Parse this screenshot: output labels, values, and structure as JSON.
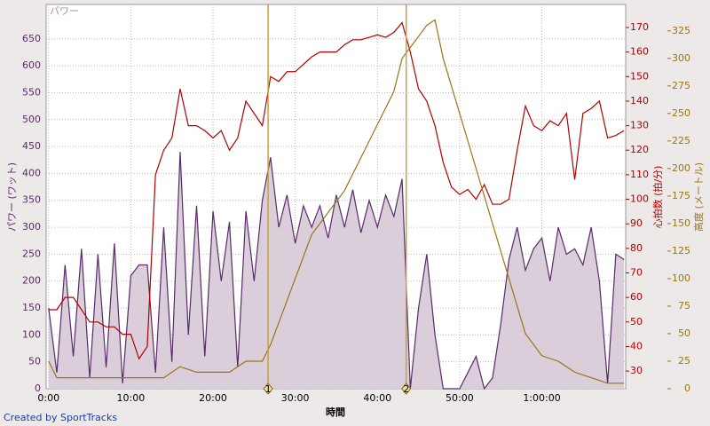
{
  "chart_data": {
    "type": "multi-axis-line",
    "panel_label": "パワー",
    "x_label": "時間",
    "y_label": "パワー (ワット)",
    "y2_label": "心拍数 (拍/分)",
    "y3_label": "高度 (メートル)",
    "footer": "Created by SportTracks",
    "grid": true,
    "xlim": [
      -0.3,
      70.2
    ],
    "xticks": [
      {
        "value": 0,
        "label": "0:00"
      },
      {
        "value": 10,
        "label": "10:00"
      },
      {
        "value": 20,
        "label": "20:00"
      },
      {
        "value": 30,
        "label": "30:00"
      },
      {
        "value": 40,
        "label": "40:00"
      },
      {
        "value": 50,
        "label": "50:00"
      },
      {
        "value": 60,
        "label": "1:00:00"
      }
    ],
    "ylim": [
      0,
      714
    ],
    "yticks": [
      0,
      50,
      100,
      150,
      200,
      250,
      300,
      350,
      400,
      450,
      500,
      550,
      600,
      650
    ],
    "y2lim": [
      22.8,
      179.4
    ],
    "y2ticks": [
      30,
      40,
      50,
      60,
      70,
      80,
      90,
      100,
      110,
      120,
      130,
      140,
      150,
      160,
      170
    ],
    "y3lim": [
      0,
      349
    ],
    "y3ticks": [
      0,
      25,
      50,
      75,
      100,
      125,
      150,
      175,
      200,
      225,
      250,
      275,
      300,
      325
    ],
    "markers": [
      {
        "x": 26.7,
        "label": "1"
      },
      {
        "x": 43.5,
        "label": "2"
      }
    ],
    "series": [
      {
        "name": "パワー",
        "axis": "y",
        "color": "#5a2a6a",
        "fill": "#d9ced9",
        "x": [
          0,
          1,
          2,
          3,
          4,
          5,
          6,
          7,
          8,
          9,
          10,
          11,
          12,
          13,
          14,
          15,
          16,
          17,
          18,
          19,
          20,
          21,
          22,
          23,
          24,
          25,
          26,
          27,
          28,
          29,
          30,
          31,
          32,
          33,
          34,
          35,
          36,
          37,
          38,
          39,
          40,
          41,
          42,
          43,
          44,
          45,
          46,
          47,
          48,
          49,
          50,
          51,
          52,
          53,
          54,
          55,
          56,
          57,
          58,
          59,
          60,
          61,
          62,
          63,
          64,
          65,
          66,
          67,
          68,
          69,
          70
        ],
        "values": [
          150,
          30,
          230,
          60,
          260,
          20,
          250,
          40,
          270,
          10,
          210,
          230,
          230,
          30,
          300,
          50,
          440,
          100,
          340,
          60,
          330,
          200,
          310,
          40,
          330,
          200,
          350,
          430,
          300,
          360,
          270,
          340,
          300,
          340,
          280,
          360,
          300,
          370,
          290,
          350,
          300,
          360,
          320,
          390,
          0,
          150,
          250,
          100,
          0,
          0,
          0,
          30,
          60,
          0,
          20,
          120,
          240,
          300,
          220,
          260,
          280,
          200,
          300,
          250,
          260,
          230,
          300,
          200,
          10,
          250,
          240
        ]
      },
      {
        "name": "心拍数",
        "axis": "y2",
        "color": "#b00000",
        "x": [
          0,
          1,
          2,
          3,
          4,
          5,
          6,
          7,
          8,
          9,
          10,
          11,
          12,
          13,
          14,
          15,
          16,
          17,
          18,
          19,
          20,
          21,
          22,
          23,
          24,
          25,
          26,
          27,
          28,
          29,
          30,
          31,
          32,
          33,
          34,
          35,
          36,
          37,
          38,
          39,
          40,
          41,
          42,
          43,
          44,
          45,
          46,
          47,
          48,
          49,
          50,
          51,
          52,
          53,
          54,
          55,
          56,
          57,
          58,
          59,
          60,
          61,
          62,
          63,
          64,
          65,
          66,
          67,
          68,
          69,
          70
        ],
        "values": [
          55,
          55,
          60,
          60,
          55,
          50,
          50,
          48,
          48,
          45,
          45,
          35,
          40,
          110,
          120,
          125,
          145,
          130,
          130,
          128,
          125,
          128,
          120,
          125,
          140,
          135,
          130,
          150,
          148,
          152,
          152,
          155,
          158,
          160,
          160,
          160,
          163,
          165,
          165,
          166,
          167,
          166,
          168,
          172,
          160,
          145,
          140,
          130,
          115,
          105,
          102,
          104,
          100,
          106,
          98,
          98,
          100,
          120,
          138,
          130,
          128,
          132,
          130,
          135,
          108,
          135,
          137,
          140,
          125,
          126,
          128
        ]
      },
      {
        "name": "高度",
        "axis": "y3",
        "color": "#9a7418",
        "x": [
          0,
          1,
          4,
          8,
          12,
          14,
          16,
          18,
          22,
          24,
          26,
          27,
          28,
          30,
          32,
          34,
          36,
          38,
          40,
          42,
          43,
          44,
          46,
          47,
          48,
          50,
          52,
          54,
          56,
          58,
          60,
          62,
          64,
          66,
          68,
          70
        ],
        "values": [
          25,
          10,
          10,
          10,
          10,
          10,
          20,
          15,
          15,
          25,
          25,
          40,
          60,
          100,
          140,
          160,
          180,
          210,
          240,
          270,
          300,
          310,
          330,
          335,
          300,
          250,
          200,
          150,
          100,
          50,
          30,
          25,
          15,
          10,
          5,
          5
        ]
      }
    ]
  }
}
